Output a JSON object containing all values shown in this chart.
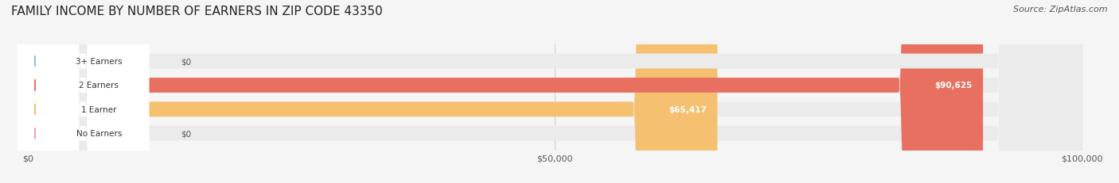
{
  "title": "FAMILY INCOME BY NUMBER OF EARNERS IN ZIP CODE 43350",
  "source": "Source: ZipAtlas.com",
  "categories": [
    "No Earners",
    "1 Earner",
    "2 Earners",
    "3+ Earners"
  ],
  "values": [
    0,
    65417,
    90625,
    0
  ],
  "bar_colors": [
    "#f4a0b0",
    "#f5c070",
    "#e87060",
    "#a0b8e0"
  ],
  "label_colors": [
    "#f4a0b0",
    "#f5c070",
    "#e87060",
    "#a0b8e0"
  ],
  "value_labels": [
    "$0",
    "$65,417",
    "$90,625",
    "$0"
  ],
  "xlim": [
    0,
    100000
  ],
  "xticks": [
    0,
    50000,
    100000
  ],
  "xticklabels": [
    "$0",
    "$50,000",
    "$100,000"
  ],
  "background_color": "#f5f5f5",
  "bar_background": "#ebebeb",
  "title_fontsize": 11,
  "source_fontsize": 8
}
